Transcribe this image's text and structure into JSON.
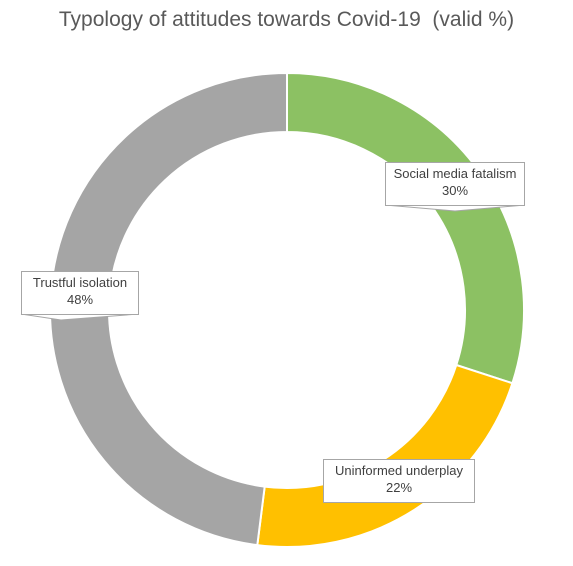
{
  "chart_data": {
    "type": "pie",
    "variant": "donut",
    "title": "Typology of attitudes towards Covid-19  (valid %)",
    "slices": [
      {
        "name": "Social media fatalism",
        "value": 30,
        "label": "30%",
        "color": "#8cc163"
      },
      {
        "name": "Uninformed underplay",
        "value": 22,
        "label": "22%",
        "color": "#ffc000"
      },
      {
        "name": "Trustful isolation",
        "value": 48,
        "label": "48%",
        "color": "#a5a5a5"
      }
    ],
    "legend": "none"
  }
}
